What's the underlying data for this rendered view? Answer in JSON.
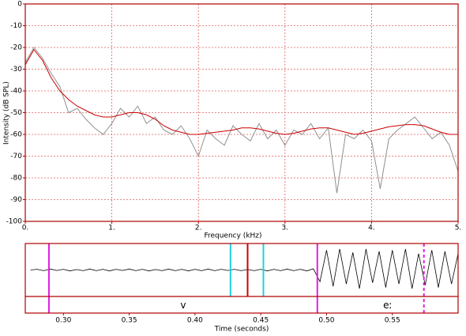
{
  "chart_data": [
    {
      "type": "line",
      "x_label": "Frequency (kHz)",
      "y_label": "Intensity (dB SPL)",
      "x": [
        0,
        0.1,
        0.2,
        0.3,
        0.4,
        0.5,
        0.6,
        0.7,
        0.8,
        0.9,
        1,
        1.1,
        1.2,
        1.3,
        1.4,
        1.5,
        1.6,
        1.7,
        1.8,
        1.9,
        2,
        2.1,
        2.2,
        2.3,
        2.4,
        2.5,
        2.6,
        2.7,
        2.8,
        2.9,
        3,
        3.1,
        3.2,
        3.3,
        3.4,
        3.5,
        3.6,
        3.7,
        3.8,
        3.9,
        4,
        4.1,
        4.2,
        4.3,
        4.4,
        4.5,
        4.6,
        4.7,
        4.8,
        4.9,
        5
      ],
      "series": [
        {
          "color": "#909090",
          "values": [
            -27,
            -20,
            -25,
            -32,
            -38,
            -50,
            -48,
            -53,
            -57,
            -60,
            -55,
            -48,
            -52,
            -47,
            -55,
            -52,
            -58,
            -60,
            -56,
            -62,
            -70,
            -58,
            -62,
            -65,
            -56,
            -60,
            -63,
            -55,
            -62,
            -58,
            -65,
            -58,
            -60,
            -55,
            -62,
            -57,
            -87,
            -60,
            -62,
            -58,
            -63,
            -85,
            -62,
            -58,
            -55,
            -52,
            -57,
            -62,
            -59,
            -65,
            -77
          ]
        },
        {
          "color": "#cc0000",
          "values": [
            -28,
            -21,
            -26,
            -34,
            -40,
            -44,
            -47,
            -49,
            -51,
            -52,
            -52,
            -51,
            -50,
            -50,
            -51,
            -53,
            -56,
            -58,
            -59,
            -60,
            -60,
            -59.5,
            -59,
            -58.5,
            -58,
            -57,
            -57,
            -57.5,
            -58.5,
            -59.5,
            -60,
            -59.5,
            -58.5,
            -57.5,
            -57,
            -57,
            -58,
            -59,
            -60,
            -59.5,
            -58.5,
            -57.5,
            -56.5,
            -56,
            -55.5,
            -55.5,
            -56,
            -57.5,
            -59,
            -60,
            -60
          ]
        }
      ],
      "xlim": [
        0,
        5
      ],
      "ylim": [
        -100,
        0
      ],
      "xticks": [
        {
          "value": 0,
          "label": "0."
        },
        {
          "value": 1,
          "label": "1."
        },
        {
          "value": 2,
          "label": "2."
        },
        {
          "value": 3,
          "label": "3."
        },
        {
          "value": 4,
          "label": "4."
        },
        {
          "value": 5,
          "label": "5."
        }
      ],
      "yticks": [
        0,
        -10,
        -20,
        -30,
        -40,
        -50,
        -60,
        -70,
        -80,
        -90,
        -100
      ],
      "grid": true
    },
    {
      "type": "waveform",
      "x_label": "Time (seconds)",
      "x": [
        0.275,
        0.28,
        0.285,
        0.29,
        0.295,
        0.3,
        0.305,
        0.31,
        0.315,
        0.32,
        0.325,
        0.33,
        0.335,
        0.34,
        0.345,
        0.35,
        0.355,
        0.36,
        0.365,
        0.37,
        0.375,
        0.38,
        0.385,
        0.39,
        0.395,
        0.4,
        0.405,
        0.41,
        0.415,
        0.42,
        0.425,
        0.43,
        0.435,
        0.44,
        0.445,
        0.45,
        0.455,
        0.46,
        0.465,
        0.47,
        0.475,
        0.48,
        0.485,
        0.49,
        0.495,
        0.5,
        0.505,
        0.51,
        0.515,
        0.52,
        0.525,
        0.53,
        0.535,
        0.54,
        0.545,
        0.55,
        0.555,
        0.56,
        0.565,
        0.57,
        0.575,
        0.58,
        0.585,
        0.59,
        0.595,
        0.6
      ],
      "values": [
        0,
        0.03,
        -0.03,
        0.04,
        -0.02,
        0.03,
        -0.04,
        0.02,
        -0.03,
        0.04,
        -0.03,
        0.03,
        -0.04,
        0.03,
        -0.02,
        0.04,
        -0.03,
        0.03,
        -0.04,
        0.02,
        -0.03,
        0.04,
        -0.03,
        0.03,
        -0.04,
        0.03,
        -0.03,
        0.04,
        -0.03,
        0.03,
        -0.02,
        0.03,
        -0.03,
        0.02,
        -0.03,
        0.03,
        -0.04,
        0.03,
        -0.03,
        0.04,
        -0.03,
        0.03,
        -0.04,
        0.05,
        -0.5,
        0.85,
        -0.7,
        0.9,
        -0.6,
        0.75,
        -0.8,
        0.9,
        -0.55,
        0.8,
        -0.75,
        0.85,
        -0.6,
        0.9,
        -0.8,
        0.7,
        -0.65,
        0.85,
        -0.75,
        0.8,
        -0.6,
        0.7
      ],
      "color": "#000000",
      "xlim": [
        0.271,
        0.6
      ],
      "ylim": [
        -1,
        1
      ],
      "xticks": [
        {
          "value": 0.3,
          "label": "0.30"
        },
        0.35,
        {
          "value": 0.4,
          "label": "0.40"
        },
        0.45,
        {
          "value": 0.5,
          "label": "0.50"
        },
        0.55
      ],
      "markers": [
        {
          "x": 0.289,
          "color": "#e020e0"
        },
        {
          "x": 0.427,
          "color": "#20d0e0"
        },
        {
          "x": 0.44,
          "color": "#cc0000"
        },
        {
          "x": 0.452,
          "color": "#20d0e0"
        },
        {
          "x": 0.493,
          "color": "#e020e0"
        },
        {
          "x": 0.574,
          "color": "#e020e0",
          "dashed": true
        }
      ],
      "segments": [
        {
          "label": "v",
          "start": 0.289,
          "end": 0.493
        },
        {
          "label": "eː",
          "start": 0.493
        }
      ]
    }
  ]
}
